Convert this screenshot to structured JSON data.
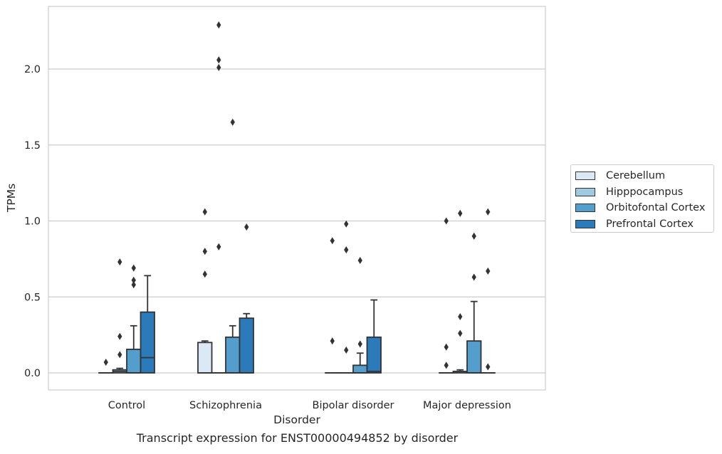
{
  "caption": "Transcript expression for ENST00000494852 by disorder",
  "chart_data": {
    "type": "box",
    "xlabel": "Disorder",
    "ylabel": "TPMs",
    "ylim": [
      -0.11,
      2.41
    ],
    "yticks": [
      "0.0",
      "0.5",
      "1.0",
      "1.5",
      "2.0"
    ],
    "ytick_values": [
      0,
      0.5,
      1.0,
      1.5,
      2.0
    ],
    "grid": true,
    "legend_position": "right",
    "categories": [
      "Control",
      "Schizophrenia",
      "Bipolar disorder",
      "Major depression"
    ],
    "series": [
      {
        "name": "Cerebellum",
        "color": "#dbe9f6",
        "boxes": [
          {
            "q1": 0,
            "median": 0,
            "q3": 0,
            "whislo": 0,
            "whishi": 0,
            "fliers": [
              0.07
            ]
          },
          {
            "q1": 0,
            "median": 0,
            "q3": 0.2,
            "whislo": 0,
            "whishi": 0.21,
            "fliers": [
              0.65,
              0.8,
              1.06
            ]
          },
          {
            "q1": 0,
            "median": 0,
            "q3": 0,
            "whislo": 0,
            "whishi": 0,
            "fliers": [
              0.21,
              0.87
            ]
          },
          {
            "q1": 0,
            "median": 0,
            "q3": 0,
            "whislo": 0,
            "whishi": 0,
            "fliers": [
              0.05,
              0.17,
              1.0
            ]
          }
        ]
      },
      {
        "name": "Hipppocampus",
        "color": "#a0cae1",
        "boxes": [
          {
            "q1": 0,
            "median": 0.01,
            "q3": 0.02,
            "whislo": 0,
            "whishi": 0.03,
            "fliers": [
              0.12,
              0.24,
              0.73
            ]
          },
          {
            "q1": 0,
            "median": 0,
            "q3": 0,
            "whislo": 0,
            "whishi": 0,
            "fliers": [
              0.83,
              2.01,
              2.06,
              2.29
            ]
          },
          {
            "q1": 0,
            "median": 0,
            "q3": 0,
            "whislo": 0,
            "whishi": 0,
            "fliers": [
              0.15,
              0.81,
              0.98
            ]
          },
          {
            "q1": 0,
            "median": 0.01,
            "q3": 0.01,
            "whislo": 0,
            "whishi": 0.02,
            "fliers": [
              0.26,
              0.37,
              1.05
            ]
          }
        ]
      },
      {
        "name": "Orbitofontal Cortex",
        "color": "#539ecd",
        "boxes": [
          {
            "q1": 0,
            "median": 0,
            "q3": 0.155,
            "whislo": 0,
            "whishi": 0.31,
            "fliers": [
              0.58,
              0.61,
              0.69
            ]
          },
          {
            "q1": 0,
            "median": 0,
            "q3": 0.235,
            "whislo": 0,
            "whishi": 0.31,
            "fliers": [
              1.65
            ]
          },
          {
            "q1": 0,
            "median": 0,
            "q3": 0.05,
            "whislo": 0,
            "whishi": 0.13,
            "fliers": [
              0.19,
              0.74
            ]
          },
          {
            "q1": 0,
            "median": 0,
            "q3": 0.21,
            "whislo": 0,
            "whishi": 0.47,
            "fliers": [
              0.63,
              0.9
            ]
          }
        ]
      },
      {
        "name": "Prefrontal Cortex",
        "color": "#2b7bba",
        "boxes": [
          {
            "q1": 0,
            "median": 0.1,
            "q3": 0.4,
            "whislo": 0,
            "whishi": 0.64,
            "fliers": []
          },
          {
            "q1": 0,
            "median": 0,
            "q3": 0.36,
            "whislo": 0,
            "whishi": 0.39,
            "fliers": [
              0.96
            ]
          },
          {
            "q1": 0,
            "median": 0.01,
            "q3": 0.235,
            "whislo": 0,
            "whishi": 0.48,
            "fliers": []
          },
          {
            "q1": 0,
            "median": 0,
            "q3": 0,
            "whislo": 0,
            "whishi": 0,
            "fliers": [
              0.04,
              0.67,
              1.06
            ]
          }
        ]
      }
    ]
  }
}
